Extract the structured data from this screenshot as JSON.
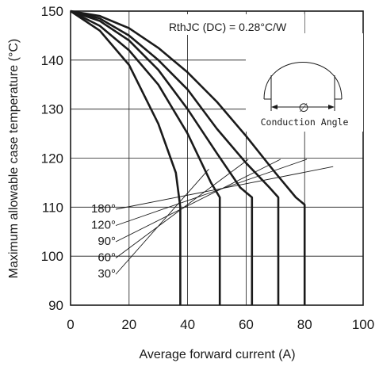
{
  "chart_data": {
    "type": "line",
    "xlabel": "Average forward current (A)",
    "ylabel": "Maximum allowable case temperature (°C)",
    "xlim": [
      0,
      100
    ],
    "ylim": [
      90,
      150
    ],
    "xticks": [
      0,
      20,
      40,
      60,
      80,
      100
    ],
    "yticks": [
      90,
      100,
      110,
      120,
      130,
      140,
      150
    ],
    "grid": true,
    "annotation": "RthJC (DC) = 0.28°C/W",
    "inset_label": "Conduction Angle",
    "inset_symbol": "∅",
    "series": [
      {
        "name": "30°",
        "points": [
          [
            0,
            150
          ],
          [
            10,
            146
          ],
          [
            20,
            139
          ],
          [
            30,
            127
          ],
          [
            36,
            117
          ],
          [
            37.5,
            110
          ],
          [
            37.5,
            90
          ]
        ]
      },
      {
        "name": "60°",
        "points": [
          [
            0,
            150
          ],
          [
            10,
            147
          ],
          [
            20,
            142
          ],
          [
            30,
            135
          ],
          [
            40,
            125
          ],
          [
            48,
            115
          ],
          [
            51,
            112
          ],
          [
            51,
            90
          ]
        ]
      },
      {
        "name": "90°",
        "points": [
          [
            0,
            150
          ],
          [
            10,
            148
          ],
          [
            20,
            144
          ],
          [
            30,
            138
          ],
          [
            40,
            130
          ],
          [
            50,
            121
          ],
          [
            58,
            114
          ],
          [
            62,
            112
          ],
          [
            62,
            90
          ]
        ]
      },
      {
        "name": "120°",
        "points": [
          [
            0,
            150
          ],
          [
            10,
            148.5
          ],
          [
            20,
            145
          ],
          [
            30,
            140
          ],
          [
            40,
            134
          ],
          [
            50,
            126
          ],
          [
            60,
            119
          ],
          [
            68,
            114
          ],
          [
            71,
            112
          ],
          [
            71,
            90
          ]
        ]
      },
      {
        "name": "180°",
        "points": [
          [
            0,
            150
          ],
          [
            10,
            149
          ],
          [
            20,
            146.5
          ],
          [
            30,
            142.5
          ],
          [
            40,
            137.5
          ],
          [
            50,
            131.5
          ],
          [
            60,
            124.5
          ],
          [
            70,
            117
          ],
          [
            77,
            112
          ],
          [
            80,
            110.5
          ],
          [
            80,
            90
          ]
        ]
      }
    ]
  }
}
